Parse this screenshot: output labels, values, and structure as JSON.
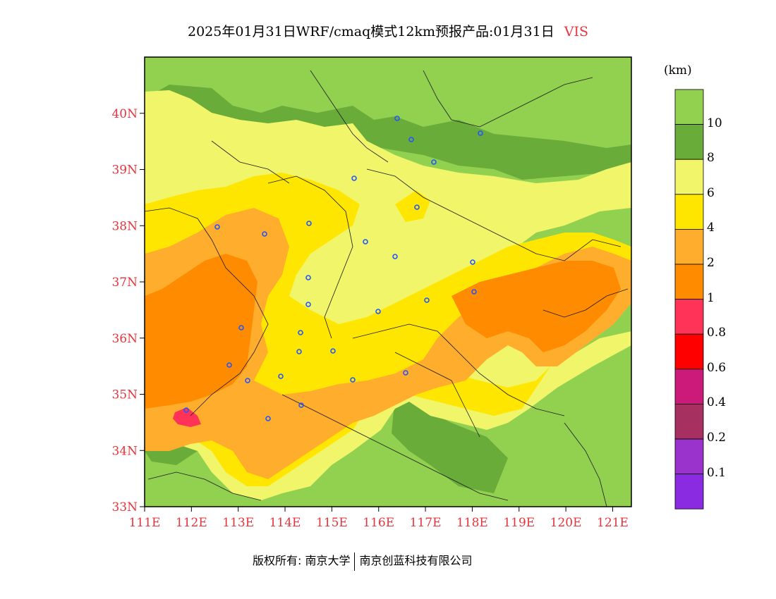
{
  "title": {
    "main": "2025年01月31日WRF/cmaq模式12km预报产品:01月31日",
    "variable": "VIS"
  },
  "map": {
    "lat_labels": [
      "33N",
      "34N",
      "35N",
      "36N",
      "37N",
      "38N",
      "39N",
      "40N"
    ],
    "lon_labels": [
      "111E",
      "112E",
      "113E",
      "114E",
      "115E",
      "116E",
      "117E",
      "118E",
      "119E",
      "120E",
      "121E"
    ],
    "extent": {
      "lon": [
        111,
        121.4
      ],
      "lat": [
        33,
        41
      ]
    }
  },
  "legend": {
    "unit": "(km)",
    "labels": [
      "10",
      "8",
      "6",
      "4",
      "2",
      "1",
      "0.8",
      "0.6",
      "0.4",
      "0.2",
      "0.1"
    ],
    "colors": [
      "#92d050",
      "#6aac3a",
      "#f0f56a",
      "#ffe600",
      "#ffad2c",
      "#ff8c00",
      "#ff3357",
      "#ff0000",
      "#cc1a7a",
      "#a63060",
      "#9933cc",
      "#8a2be2"
    ]
  },
  "footer": {
    "left": "版权所有: 南京大学",
    "right": "南京创蓝科技有限公司"
  }
}
